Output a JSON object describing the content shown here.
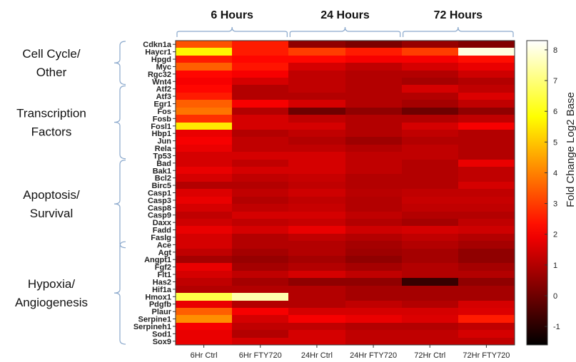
{
  "chart_data": {
    "type": "heatmap",
    "time_groups": [
      "6 Hours",
      "24 Hours",
      "72 Hours"
    ],
    "columns": [
      "6Hr Ctrl",
      "6Hr FTY720",
      "24Hr Ctrl",
      "24Hr FTY720",
      "72Hr Ctrl",
      "72Hr FTY720"
    ],
    "category_groups": [
      "Cell Cycle/\nOther",
      "Transcription\nFactors",
      "Apoptosis/\nSurvival",
      "Hypoxia/\nAngiogenesis"
    ],
    "rows": [
      "Cdkn1a",
      "Haycr1",
      "Hpgd",
      "Myc",
      "Rgc32",
      "Wnt4",
      "Atf2",
      "Atf3",
      "Egr1",
      "Fos",
      "Fosb",
      "Fosl1",
      "Hbp1",
      "Jun",
      "Rela",
      "Tp53",
      "Bad",
      "Bak1",
      "Bcl2",
      "Birc5",
      "Casp1",
      "Casp3",
      "Casp8",
      "Casp9",
      "Daxx",
      "Fadd",
      "Faslg",
      "Ace",
      "Agt",
      "Angpt1",
      "Fgf2",
      "Flt1",
      "Has2",
      "Hif1a",
      "Hmox1",
      "Pdgfb",
      "Plaur",
      "Serpine1",
      "Serpineh1",
      "Sod1",
      "Sox9"
    ],
    "values": [
      [
        3.3,
        2.5,
        0.5,
        0.2,
        0.6,
        0.3
      ],
      [
        5.7,
        2.5,
        3.0,
        2.5,
        3.0,
        8.0
      ],
      [
        2.5,
        2.2,
        2.2,
        2.0,
        2.0,
        2.3
      ],
      [
        3.5,
        2.4,
        1.5,
        1.2,
        1.5,
        1.8
      ],
      [
        2.2,
        2.0,
        1.2,
        1.0,
        1.0,
        1.4
      ],
      [
        2.0,
        1.5,
        1.2,
        1.0,
        0.8,
        1.0
      ],
      [
        2.2,
        1.0,
        1.2,
        1.0,
        1.5,
        1.2
      ],
      [
        2.5,
        1.0,
        1.0,
        1.0,
        1.0,
        1.6
      ],
      [
        3.5,
        2.0,
        1.5,
        1.0,
        0.8,
        1.2
      ],
      [
        3.8,
        1.0,
        0.0,
        0.5,
        0.0,
        0.5
      ],
      [
        2.8,
        1.5,
        1.2,
        1.0,
        1.0,
        1.2
      ],
      [
        5.5,
        1.5,
        1.5,
        1.0,
        1.5,
        2.0
      ],
      [
        1.8,
        1.0,
        1.2,
        1.0,
        1.2,
        1.0
      ],
      [
        2.0,
        1.2,
        1.0,
        0.7,
        1.0,
        1.0
      ],
      [
        1.8,
        1.2,
        1.2,
        1.0,
        1.2,
        1.0
      ],
      [
        1.5,
        1.5,
        1.5,
        1.2,
        1.2,
        1.0
      ],
      [
        1.5,
        1.2,
        1.5,
        1.2,
        1.0,
        1.8
      ],
      [
        1.8,
        1.5,
        1.5,
        1.2,
        1.0,
        1.2
      ],
      [
        1.5,
        1.2,
        1.3,
        1.0,
        1.0,
        1.2
      ],
      [
        1.0,
        1.0,
        1.2,
        1.0,
        1.0,
        1.5
      ],
      [
        1.6,
        1.2,
        1.4,
        1.1,
        1.2,
        1.2
      ],
      [
        1.8,
        1.0,
        1.2,
        1.0,
        1.3,
        1.3
      ],
      [
        1.5,
        1.2,
        1.3,
        1.0,
        1.2,
        1.2
      ],
      [
        1.2,
        1.5,
        1.5,
        1.2,
        1.0,
        1.0
      ],
      [
        1.4,
        1.2,
        1.3,
        1.0,
        0.8,
        1.2
      ],
      [
        1.8,
        1.5,
        1.8,
        1.4,
        1.5,
        1.4
      ],
      [
        1.5,
        1.0,
        1.2,
        1.0,
        1.2,
        1.0
      ],
      [
        1.5,
        1.0,
        1.0,
        0.8,
        1.0,
        0.8
      ],
      [
        1.2,
        0.8,
        1.0,
        0.7,
        0.8,
        0.5
      ],
      [
        0.8,
        0.6,
        0.8,
        0.5,
        0.8,
        0.5
      ],
      [
        1.8,
        0.8,
        1.0,
        0.8,
        1.0,
        0.8
      ],
      [
        1.5,
        1.2,
        1.5,
        1.2,
        1.0,
        1.0
      ],
      [
        1.2,
        0.8,
        0.5,
        0.5,
        -0.8,
        0.5
      ],
      [
        1.0,
        1.0,
        1.0,
        0.8,
        0.8,
        0.8
      ],
      [
        6.5,
        7.5,
        1.0,
        0.8,
        0.8,
        0.8
      ],
      [
        1.8,
        1.0,
        1.0,
        1.2,
        1.0,
        1.5
      ],
      [
        3.5,
        2.0,
        1.5,
        1.5,
        1.5,
        1.6
      ],
      [
        4.2,
        1.5,
        2.0,
        1.8,
        1.6,
        2.5
      ],
      [
        2.0,
        1.2,
        1.2,
        1.0,
        1.0,
        1.2
      ],
      [
        1.8,
        1.0,
        1.5,
        1.2,
        1.2,
        1.5
      ],
      [
        1.8,
        1.5,
        1.5,
        1.2,
        1.2,
        1.2
      ]
    ],
    "colorbar": {
      "label": "Fold Change Log2 Base",
      "min": -1.6,
      "max": 8.3,
      "ticks": [
        -1,
        0,
        1,
        2,
        3,
        4,
        5,
        6,
        7,
        8
      ],
      "colormap": "hot"
    }
  }
}
